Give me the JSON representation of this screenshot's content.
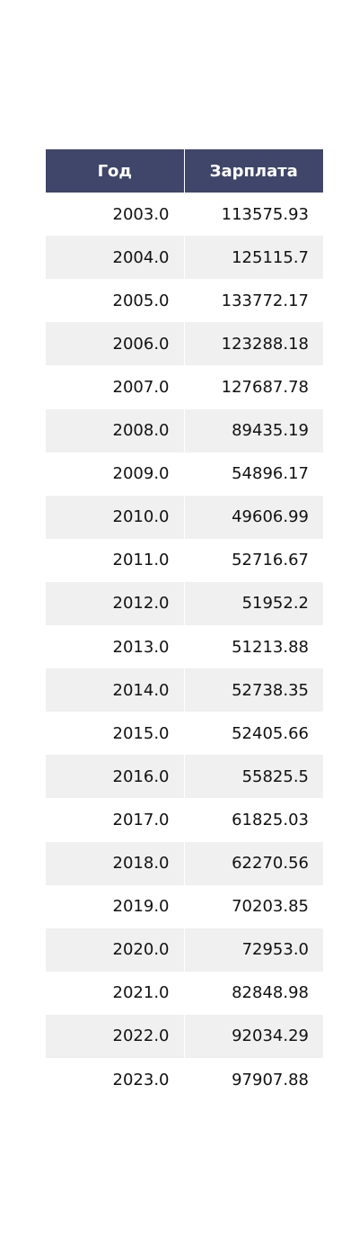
{
  "chart_data": {
    "type": "table",
    "columns": [
      "Год",
      "Зарплата"
    ],
    "rows": [
      [
        "2003.0",
        "113575.93"
      ],
      [
        "2004.0",
        "125115.7"
      ],
      [
        "2005.0",
        "133772.17"
      ],
      [
        "2006.0",
        "123288.18"
      ],
      [
        "2007.0",
        "127687.78"
      ],
      [
        "2008.0",
        "89435.19"
      ],
      [
        "2009.0",
        "54896.17"
      ],
      [
        "2010.0",
        "49606.99"
      ],
      [
        "2011.0",
        "52716.67"
      ],
      [
        "2012.0",
        "51952.2"
      ],
      [
        "2013.0",
        "51213.88"
      ],
      [
        "2014.0",
        "52738.35"
      ],
      [
        "2015.0",
        "52405.66"
      ],
      [
        "2016.0",
        "55825.5"
      ],
      [
        "2017.0",
        "61825.03"
      ],
      [
        "2018.0",
        "62270.56"
      ],
      [
        "2019.0",
        "70203.85"
      ],
      [
        "2020.0",
        "72953.0"
      ],
      [
        "2021.0",
        "82848.98"
      ],
      [
        "2022.0",
        "92034.29"
      ],
      [
        "2023.0",
        "97907.88"
      ]
    ]
  },
  "colors": {
    "header_bg": "#3f4669",
    "header_text": "#ffffff",
    "stripe_bg": "#f0f0f0",
    "row_bg": "#ffffff"
  }
}
